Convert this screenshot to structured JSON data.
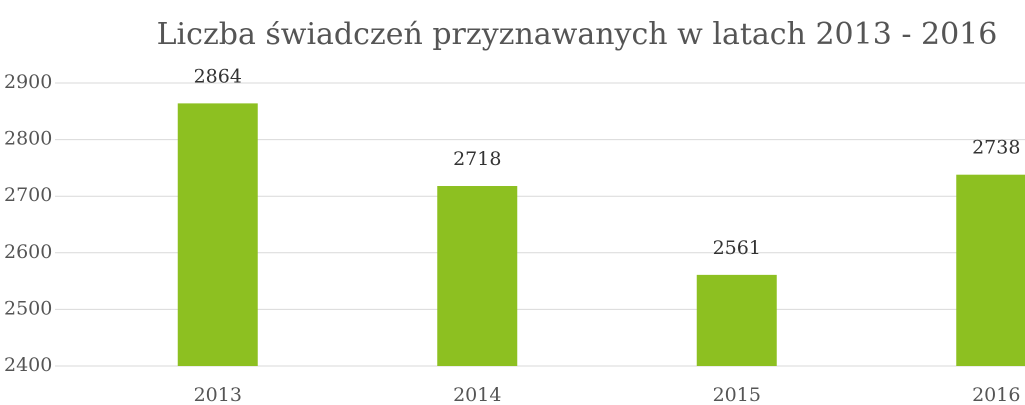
{
  "chart_data": {
    "type": "bar",
    "title": "Liczba świadczeń przyznawanych w latach 2013 - 2016",
    "categories": [
      "2013",
      "2014",
      "2015",
      "2016"
    ],
    "values": [
      2864,
      2718,
      2561,
      2738
    ],
    "color": "#8dc021",
    "ylim": [
      2400,
      2900
    ],
    "yticks": [
      2400,
      2500,
      2600,
      2700,
      2800,
      2900
    ],
    "grid": true
  }
}
